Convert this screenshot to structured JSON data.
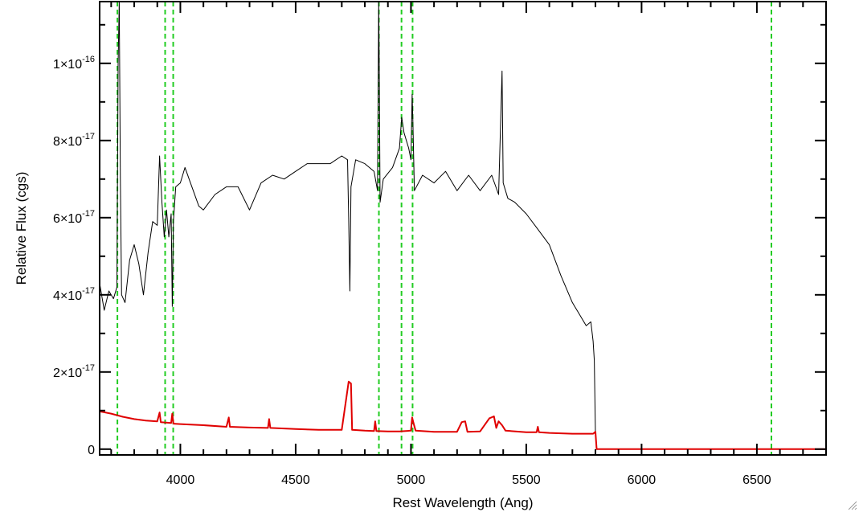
{
  "chart_data": {
    "type": "line",
    "title": "",
    "xlabel": "Rest Wavelength (Ang)",
    "ylabel": "Relative Flux (cgs)",
    "xlim": [
      3650,
      6800
    ],
    "ylim": [
      -0.15,
      11.6
    ],
    "y_unit_exponent": -17,
    "grid": false,
    "legend": "none",
    "x_ticks": [
      4000,
      4500,
      5000,
      5500,
      6000,
      6500
    ],
    "x_tick_labels": [
      "4000",
      "4500",
      "5000",
      "5500",
      "6000",
      "6500"
    ],
    "y_ticks": [
      {
        "value": 0,
        "mant": "0",
        "exp": ""
      },
      {
        "value": 2,
        "mant": "2×10",
        "exp": "-17"
      },
      {
        "value": 4,
        "mant": "4×10",
        "exp": "-17"
      },
      {
        "value": 6,
        "mant": "6×10",
        "exp": "-17"
      },
      {
        "value": 8,
        "mant": "8×10",
        "exp": "-17"
      },
      {
        "value": 10,
        "mant": "1×10",
        "exp": "-16"
      }
    ],
    "series": [
      {
        "role": "spectrum",
        "color": "#000000",
        "points": [
          [
            3650,
            4.3
          ],
          [
            3670,
            3.6
          ],
          [
            3690,
            4.1
          ],
          [
            3710,
            3.9
          ],
          [
            3725,
            4.2
          ],
          [
            3730,
            10.0
          ],
          [
            3735,
            11.6
          ],
          [
            3740,
            7.0
          ],
          [
            3745,
            4.0
          ],
          [
            3760,
            3.8
          ],
          [
            3780,
            4.9
          ],
          [
            3800,
            5.3
          ],
          [
            3820,
            4.8
          ],
          [
            3840,
            4.0
          ],
          [
            3860,
            5.1
          ],
          [
            3880,
            5.9
          ],
          [
            3900,
            5.8
          ],
          [
            3910,
            7.6
          ],
          [
            3920,
            6.4
          ],
          [
            3930,
            5.5
          ],
          [
            3940,
            6.2
          ],
          [
            3950,
            5.5
          ],
          [
            3960,
            6.1
          ],
          [
            3965,
            3.7
          ],
          [
            3970,
            5.9
          ],
          [
            3980,
            6.8
          ],
          [
            4000,
            6.9
          ],
          [
            4020,
            7.3
          ],
          [
            4050,
            6.8
          ],
          [
            4080,
            6.3
          ],
          [
            4100,
            6.2
          ],
          [
            4150,
            6.6
          ],
          [
            4200,
            6.8
          ],
          [
            4250,
            6.8
          ],
          [
            4300,
            6.2
          ],
          [
            4350,
            6.9
          ],
          [
            4400,
            7.1
          ],
          [
            4450,
            7.0
          ],
          [
            4500,
            7.2
          ],
          [
            4550,
            7.4
          ],
          [
            4600,
            7.4
          ],
          [
            4650,
            7.4
          ],
          [
            4700,
            7.6
          ],
          [
            4725,
            7.5
          ],
          [
            4730,
            6.0
          ],
          [
            4735,
            4.1
          ],
          [
            4740,
            6.8
          ],
          [
            4760,
            7.5
          ],
          [
            4800,
            7.4
          ],
          [
            4840,
            7.2
          ],
          [
            4855,
            6.7
          ],
          [
            4860,
            11.6
          ],
          [
            4863,
            9.5
          ],
          [
            4866,
            6.4
          ],
          [
            4880,
            7.0
          ],
          [
            4920,
            7.3
          ],
          [
            4950,
            7.8
          ],
          [
            4960,
            8.6
          ],
          [
            4970,
            8.2
          ],
          [
            4990,
            7.8
          ],
          [
            5000,
            7.5
          ],
          [
            5005,
            9.2
          ],
          [
            5008,
            8.6
          ],
          [
            5015,
            6.7
          ],
          [
            5050,
            7.1
          ],
          [
            5100,
            6.9
          ],
          [
            5150,
            7.2
          ],
          [
            5200,
            6.7
          ],
          [
            5250,
            7.1
          ],
          [
            5300,
            6.7
          ],
          [
            5350,
            7.1
          ],
          [
            5380,
            6.6
          ],
          [
            5395,
            9.8
          ],
          [
            5400,
            6.9
          ],
          [
            5420,
            6.5
          ],
          [
            5450,
            6.4
          ],
          [
            5500,
            6.1
          ],
          [
            5550,
            5.7
          ],
          [
            5600,
            5.3
          ],
          [
            5650,
            4.5
          ],
          [
            5700,
            3.8
          ],
          [
            5730,
            3.5
          ],
          [
            5760,
            3.2
          ],
          [
            5780,
            3.3
          ],
          [
            5790,
            2.8
          ],
          [
            5795,
            2.3
          ],
          [
            5800,
            0.4
          ],
          [
            5805,
            0.0
          ],
          [
            6800,
            0.0
          ]
        ]
      },
      {
        "role": "error",
        "color": "#e00000",
        "points": [
          [
            3650,
            0.98
          ],
          [
            3700,
            0.92
          ],
          [
            3750,
            0.84
          ],
          [
            3800,
            0.78
          ],
          [
            3850,
            0.74
          ],
          [
            3900,
            0.72
          ],
          [
            3910,
            0.95
          ],
          [
            3915,
            0.7
          ],
          [
            3960,
            0.68
          ],
          [
            3965,
            0.92
          ],
          [
            3970,
            0.66
          ],
          [
            4000,
            0.65
          ],
          [
            4100,
            0.62
          ],
          [
            4200,
            0.58
          ],
          [
            4210,
            0.82
          ],
          [
            4215,
            0.58
          ],
          [
            4300,
            0.56
          ],
          [
            4380,
            0.55
          ],
          [
            4385,
            0.78
          ],
          [
            4390,
            0.55
          ],
          [
            4500,
            0.52
          ],
          [
            4600,
            0.5
          ],
          [
            4700,
            0.5
          ],
          [
            4730,
            1.75
          ],
          [
            4740,
            1.7
          ],
          [
            4745,
            0.5
          ],
          [
            4800,
            0.48
          ],
          [
            4840,
            0.47
          ],
          [
            4845,
            0.72
          ],
          [
            4850,
            0.47
          ],
          [
            4900,
            0.46
          ],
          [
            4950,
            0.46
          ],
          [
            5000,
            0.48
          ],
          [
            5005,
            0.82
          ],
          [
            5010,
            0.7
          ],
          [
            5020,
            0.48
          ],
          [
            5100,
            0.45
          ],
          [
            5200,
            0.45
          ],
          [
            5220,
            0.7
          ],
          [
            5235,
            0.72
          ],
          [
            5245,
            0.45
          ],
          [
            5300,
            0.46
          ],
          [
            5340,
            0.8
          ],
          [
            5360,
            0.85
          ],
          [
            5370,
            0.55
          ],
          [
            5380,
            0.72
          ],
          [
            5395,
            0.62
          ],
          [
            5410,
            0.48
          ],
          [
            5500,
            0.44
          ],
          [
            5545,
            0.44
          ],
          [
            5550,
            0.58
          ],
          [
            5555,
            0.44
          ],
          [
            5600,
            0.42
          ],
          [
            5700,
            0.4
          ],
          [
            5790,
            0.4
          ],
          [
            5800,
            0.45
          ],
          [
            5805,
            0.0
          ],
          [
            6800,
            0.0
          ]
        ]
      }
    ],
    "vertical_lines": {
      "color": "#22cc22",
      "style": "dashed",
      "x": [
        3727,
        3934,
        3969,
        4861,
        4959,
        5007,
        6563
      ]
    }
  }
}
